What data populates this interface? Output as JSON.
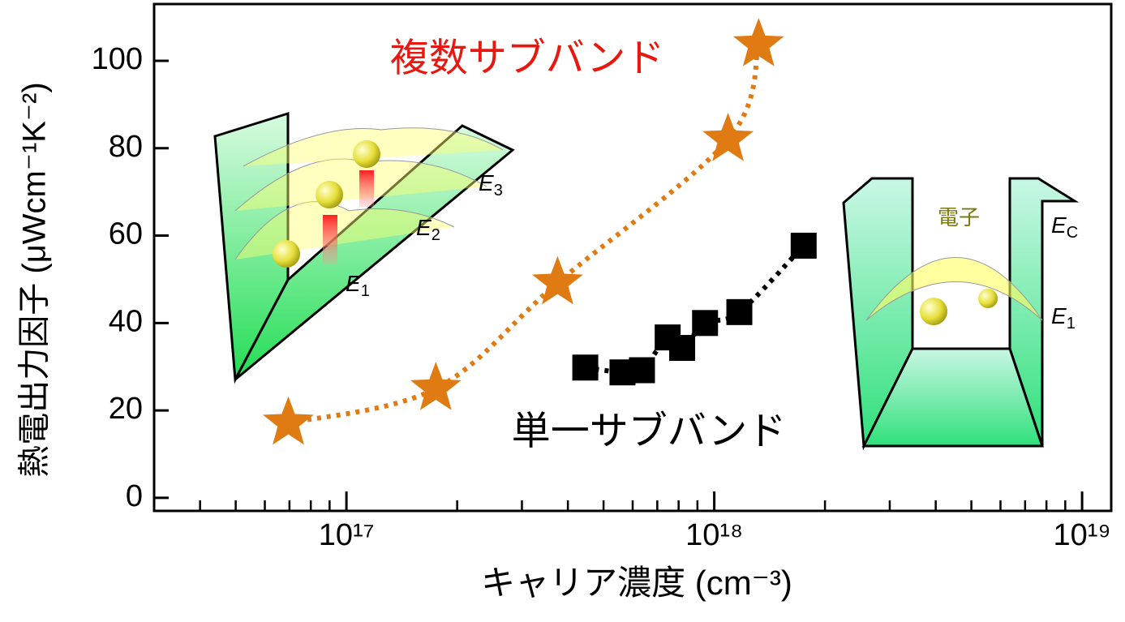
{
  "chart_data": {
    "type": "scatter",
    "x_label": "キャリア濃度 (cm⁻³)",
    "y_label": "熱電出力因子 (μWcm⁻¹K⁻²)",
    "xscale": "log",
    "xlim": [
      3e+16,
      1.2e+19
    ],
    "ylim": [
      -3,
      113
    ],
    "xticks": [
      {
        "value": 1e+17,
        "label": "10¹⁷"
      },
      {
        "value": 1e+18,
        "label": "10¹⁸"
      },
      {
        "value": 1e+19,
        "label": "10¹⁹"
      }
    ],
    "xminorticks": [
      4e+16,
      5e+16,
      6e+16,
      7e+16,
      8e+16,
      9e+16,
      2e+17,
      3e+17,
      4e+17,
      5e+17,
      6e+17,
      7e+17,
      8e+17,
      9e+17,
      2e+18,
      3e+18,
      4e+18,
      5e+18,
      6e+18,
      7e+18,
      8e+18,
      9e+18
    ],
    "yticks": [
      0,
      20,
      40,
      60,
      80,
      100
    ],
    "series": [
      {
        "name": "複数サブバンド",
        "color": "#e07a12",
        "marker": "star",
        "x": [
          6.95e+16,
          1.75e+17,
          3.75e+17,
          1.09e+18,
          1.32e+18
        ],
        "values": [
          17.1,
          25,
          49.2,
          82,
          103.7
        ]
      },
      {
        "name": "単一サブバンド",
        "color": "#000000",
        "marker": "square",
        "x": [
          4.46e+17,
          5.63e+17,
          6.36e+17,
          7.47e+17,
          8.18e+17,
          9.44e+17,
          1.17e+18,
          1.75e+18
        ],
        "values": [
          29.8,
          28.7,
          29.2,
          36.7,
          34.3,
          40.0,
          42.5,
          57.7
        ]
      }
    ],
    "band_labels": [
      {
        "letter": "E",
        "sub": "3"
      },
      {
        "letter": "E",
        "sub": "2"
      },
      {
        "letter": "E",
        "sub": "1"
      },
      {
        "letter": "E",
        "sub": "C"
      },
      {
        "letter": "E",
        "sub": "1"
      }
    ],
    "electron_label": "電子"
  }
}
